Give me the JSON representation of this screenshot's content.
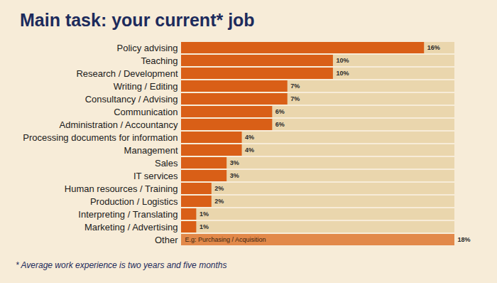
{
  "chart_data": {
    "type": "bar",
    "orientation": "horizontal",
    "title": "Main task: your current* job",
    "footnote": "* Average work experience is two years and five months",
    "categories": [
      "Policy advising",
      "Teaching",
      "Research / Development",
      "Writing / Editing",
      "Consultancy / Advising",
      "Communication",
      "Administration / Accountancy",
      "Processing documents for information",
      "Management",
      "Sales",
      "IT services",
      "Human resources / Training",
      "Production / Logistics",
      "Interpreting / Translating",
      "Marketing / Advertising",
      "Other"
    ],
    "values": [
      16,
      10,
      10,
      7,
      7,
      6,
      6,
      4,
      4,
      3,
      3,
      2,
      2,
      1,
      1,
      18
    ],
    "value_labels": [
      "16%",
      "10%",
      "10%",
      "7%",
      "7%",
      "6%",
      "6%",
      "4%",
      "4%",
      "3%",
      "3%",
      "2%",
      "2%",
      "1%",
      "1%",
      "18%"
    ],
    "colors": [
      "#d95f17",
      "#d95f17",
      "#d95f17",
      "#d95f17",
      "#d95f17",
      "#d95f17",
      "#d95f17",
      "#d95f17",
      "#d95f17",
      "#d95f17",
      "#d95f17",
      "#d95f17",
      "#d95f17",
      "#d95f17",
      "#d95f17",
      "#e2894a"
    ],
    "annotations": [
      {
        "category": "Other",
        "text": "E.g: Purchasing / Acquisition"
      }
    ],
    "xlim": [
      0,
      18
    ],
    "data_labels": true,
    "tick_labels": "y"
  }
}
